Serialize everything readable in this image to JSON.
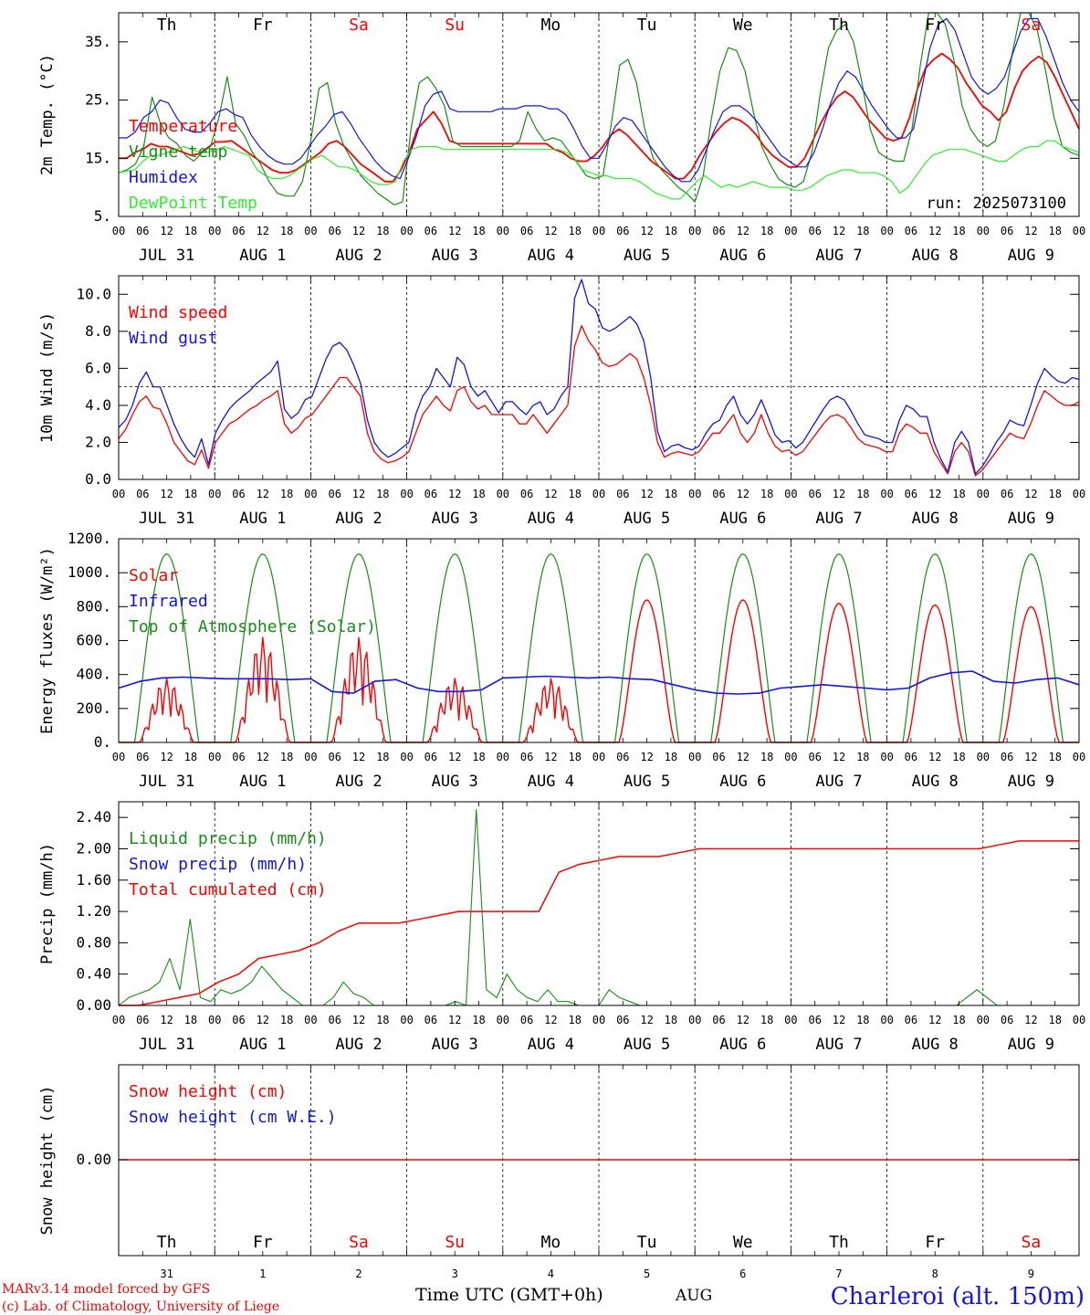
{
  "meta": {
    "run": "run: 2025073100",
    "footer_left_1": "MARv3.14 model forced by GFS",
    "footer_left_2": "(c) Lab. of Climatology, University of Liege",
    "footer_center": "Time UTC (GMT+0h)",
    "footer_month": "AUG",
    "station": "Charleroi (alt. 150m)",
    "hour_ticks": [
      "00",
      "06",
      "12",
      "18"
    ],
    "days": [
      "Th",
      "Fr",
      "Sa",
      "Su",
      "Mo",
      "Tu",
      "We",
      "Th",
      "Fr",
      "Sa"
    ],
    "weekend_color_idx": [
      2,
      3,
      9
    ],
    "dates": [
      "JUL 31",
      "AUG  1",
      "AUG  2",
      "AUG  3",
      "AUG  4",
      "AUG  5",
      "AUG  6",
      "AUG  7",
      "AUG  8",
      "AUG  9"
    ],
    "date_numbers": [
      "31",
      "1",
      "2",
      "3",
      "4",
      "5",
      "6",
      "7",
      "8",
      "9"
    ],
    "colors": {
      "red": "#ff0000",
      "green": "#1a8c1a",
      "blue": "#1414e6",
      "lightgreen": "#33ee33",
      "weekend": "#ff1a1a"
    }
  },
  "chart_data": [
    {
      "type": "line",
      "ylabel": "2m Temp. (°C)",
      "ylim": [
        5,
        40
      ],
      "yticks": [
        "5.",
        "15.",
        "25.",
        "35."
      ],
      "x": "hour of period (0-240, 3-hourly)",
      "series": [
        {
          "name": "Temperature",
          "color": "red",
          "values": [
            15,
            15,
            16,
            16.5,
            17.5,
            17,
            17,
            16.5,
            16,
            15.5,
            15.8,
            16.8,
            17.8,
            17.8,
            18,
            17,
            16,
            15,
            14,
            13,
            12.5,
            12.5,
            13,
            14,
            15,
            16,
            17.5,
            18,
            17,
            15.5,
            14,
            13,
            12,
            11,
            11,
            13,
            16,
            20,
            21.5,
            23,
            21,
            18,
            17.5,
            17.5,
            17.5,
            17.5,
            17.5,
            17.5,
            17.5,
            17.5,
            17.5,
            17.5,
            17.5,
            17.5,
            16.5,
            16,
            15,
            14.5,
            14.5,
            15.5,
            17,
            19,
            20,
            19,
            17.5,
            16,
            14.5,
            13.5,
            12.5,
            11.5,
            11.5,
            13,
            15.5,
            17.5,
            19.5,
            21,
            22,
            21.5,
            20.5,
            19,
            17,
            15.5,
            14.5,
            13.5,
            13.5,
            15,
            18,
            21,
            23.5,
            25.5,
            26.5,
            25.5,
            23.5,
            21.5,
            20,
            18.5,
            18,
            18.5,
            22,
            27,
            30.5,
            32,
            33,
            32,
            30.5,
            28,
            26,
            24,
            23,
            21.5,
            23,
            27,
            30,
            31.5,
            32.5,
            31.5,
            29,
            26,
            23,
            20
          ]
        },
        {
          "name": "Vigne temp",
          "color": "green",
          "values": [
            12.5,
            13,
            14,
            17,
            25.5,
            21,
            18.5,
            17.5,
            15.5,
            14.5,
            16,
            17,
            22,
            29,
            21,
            19,
            16,
            14,
            11,
            9,
            8.5,
            8.5,
            11,
            18,
            27,
            28,
            21,
            17,
            14.5,
            12,
            10.5,
            9,
            8,
            7,
            7.5,
            20,
            28,
            29,
            27,
            24,
            18,
            17,
            17,
            17,
            17,
            17,
            17,
            17,
            18,
            23,
            20,
            18,
            18.5,
            18,
            16,
            14,
            12,
            11.5,
            12,
            21,
            31,
            32,
            28,
            20,
            15,
            13,
            11.5,
            10,
            9,
            7.5,
            12,
            22,
            30,
            34,
            33.5,
            30,
            23,
            17,
            14,
            11.5,
            10.5,
            10,
            11,
            16,
            26,
            34,
            37,
            38,
            35,
            28,
            20,
            16,
            15,
            14.5,
            14.5,
            20,
            31,
            40,
            41,
            38,
            32,
            24,
            20,
            18,
            17,
            18,
            24,
            33,
            40,
            42,
            37,
            30,
            22,
            17,
            16,
            15.5
          ]
        },
        {
          "name": "Humidex",
          "color": "blue",
          "values": [
            18.5,
            18.5,
            19.5,
            22,
            23,
            25,
            24.5,
            22,
            20,
            19.5,
            19.5,
            21,
            23,
            23.5,
            22.5,
            22,
            19,
            17,
            15.5,
            14.5,
            14,
            14,
            15,
            17,
            19,
            20.5,
            22.5,
            23,
            21,
            18.5,
            16.5,
            14.5,
            13,
            12,
            11.5,
            15,
            19,
            24,
            26,
            26.5,
            23.5,
            23,
            23,
            23,
            23,
            23,
            23.5,
            23.5,
            23.5,
            24,
            24,
            24,
            23.5,
            23.5,
            22.5,
            20,
            17,
            15,
            15,
            17.5,
            20.5,
            22,
            21.5,
            19.5,
            17.5,
            15.5,
            13.5,
            12,
            11,
            11,
            13,
            16.5,
            20,
            23,
            24,
            24,
            23,
            21.5,
            19.5,
            17.5,
            15.5,
            14.5,
            13.5,
            13.5,
            16,
            20,
            24.5,
            28,
            30,
            29,
            26.5,
            24,
            22,
            20,
            18.5,
            18.5,
            20,
            27,
            34,
            38,
            39,
            37,
            33,
            29,
            27,
            26,
            27,
            29,
            33,
            37,
            39,
            39,
            36,
            32,
            28,
            25,
            23
          ]
        },
        {
          "name": "DewPoint Temp",
          "color": "lightgreen",
          "values": [
            12.5,
            12.8,
            13,
            14.5,
            15.5,
            15.5,
            16,
            16.5,
            17,
            16.5,
            16,
            16,
            16.5,
            17,
            16.5,
            16,
            15.5,
            13,
            12,
            11.5,
            11.5,
            12,
            13,
            14,
            15,
            15.5,
            14.5,
            13.5,
            13.5,
            13,
            12,
            11,
            10.5,
            10.5,
            11,
            14.5,
            16.5,
            17,
            17,
            17,
            16.5,
            16.5,
            16.5,
            16.5,
            16.5,
            16.5,
            16.5,
            16.5,
            16.5,
            16.5,
            16.5,
            16.5,
            16.5,
            16.5,
            16.5,
            16,
            15,
            13,
            12.5,
            12,
            12,
            11.5,
            11.5,
            11.5,
            11,
            10,
            9,
            8.5,
            8,
            8,
            9.5,
            11,
            12,
            11,
            10,
            10.5,
            10,
            10.5,
            11,
            10.5,
            10,
            10,
            10,
            9.5,
            9.5,
            10,
            11,
            12,
            12.5,
            13,
            13,
            12.5,
            12.5,
            12.5,
            12,
            11,
            9,
            10,
            12,
            14,
            15.5,
            16,
            16.5,
            16.5,
            16.5,
            16,
            15.5,
            15,
            14.5,
            14.5,
            15.5,
            16.5,
            17,
            17,
            18,
            18,
            17,
            16.5,
            16
          ]
        }
      ]
    },
    {
      "type": "line",
      "ylabel": "10m Wind (m/s)",
      "ylim": [
        0,
        11
      ],
      "yticks": [
        "0.0",
        "2.0",
        "4.0",
        "6.0",
        "8.0",
        "10.0"
      ],
      "reference_line": 5,
      "series": [
        {
          "name": "Wind speed",
          "color": "red",
          "values": [
            2.2,
            2.7,
            3.5,
            4.2,
            4.5,
            3.9,
            3.8,
            3,
            2,
            1.5,
            1,
            0.8,
            1.6,
            0.6,
            2,
            2.5,
            3,
            3.2,
            3.5,
            3.8,
            4,
            4.3,
            4.5,
            4.8,
            3,
            2.5,
            2.8,
            3.3,
            3.5,
            4,
            4.5,
            5,
            5.5,
            5.5,
            5,
            4.5,
            2.5,
            1.5,
            1.1,
            0.9,
            1,
            1.2,
            1.5,
            2.5,
            3.5,
            4,
            4.5,
            4,
            3.7,
            4.8,
            5,
            4.2,
            3.8,
            4,
            3.5,
            3.5,
            3.5,
            3.5,
            3,
            3,
            3.5,
            3,
            2.5,
            3,
            3.5,
            4,
            7.2,
            8.3,
            7.5,
            7,
            6.3,
            6.1,
            6.2,
            6.5,
            6.8,
            6.5,
            5.5,
            4,
            2,
            1.2,
            1.4,
            1.5,
            1.4,
            1.3,
            1.5,
            2,
            2.5,
            2.5,
            3,
            3.5,
            2.5,
            2,
            2.5,
            3.5,
            2.5,
            1.8,
            1.5,
            1.6,
            1.3,
            1.5,
            2,
            2.5,
            3,
            3.4,
            3.5,
            3.3,
            2.8,
            2.2,
            1.9,
            1.8,
            1.7,
            1.5,
            1.5,
            2.5,
            3,
            2.8,
            2.5,
            2.5,
            1.5,
            0.9,
            0.3,
            1.5,
            2,
            1.5,
            0.2,
            0.5,
            1,
            1.5,
            2,
            2.5,
            2.3,
            2.2,
            3,
            4,
            4.8,
            4.5,
            4.2,
            4,
            4,
            4.2
          ]
        },
        {
          "name": "Wind gust",
          "color": "blue",
          "values": [
            2.8,
            3.2,
            4,
            5.2,
            5.8,
            5,
            5,
            4,
            3,
            2.2,
            1.6,
            1.2,
            2.2,
            0.8,
            2.5,
            3.2,
            3.8,
            4.2,
            4.5,
            4.8,
            5.2,
            5.5,
            5.8,
            6.4,
            3.8,
            3.3,
            3.6,
            4.3,
            4.5,
            5.5,
            6.5,
            7.2,
            7.4,
            7,
            6.2,
            5.2,
            3.2,
            2,
            1.5,
            1.2,
            1.4,
            1.7,
            2,
            3.5,
            4.5,
            5,
            6,
            5.5,
            5,
            6.6,
            6.2,
            5,
            4.5,
            4.8,
            4.2,
            3.6,
            4.2,
            4.2,
            3.8,
            3.5,
            4,
            4.2,
            3.5,
            3.8,
            4.5,
            5,
            9.8,
            10.8,
            9.5,
            9.2,
            8.2,
            8,
            8.2,
            8.5,
            8.8,
            8.4,
            7.5,
            5.5,
            2.6,
            1.5,
            1.8,
            1.9,
            1.7,
            1.6,
            1.8,
            2.5,
            3,
            3.2,
            4,
            4.5,
            3.5,
            3,
            3.5,
            4.3,
            3.4,
            2.4,
            2,
            2.1,
            1.7,
            2,
            2.6,
            3.2,
            3.8,
            4.3,
            4.5,
            4.3,
            3.7,
            3,
            2.4,
            2.3,
            2.2,
            2,
            2,
            3.2,
            4,
            3.8,
            3.4,
            3.4,
            2,
            1.1,
            0.4,
            2,
            2.6,
            2,
            0.3,
            0.7,
            1.3,
            2,
            2.5,
            3.2,
            3,
            2.9,
            4,
            5.2,
            6,
            5.6,
            5.3,
            5.2,
            5.5,
            5.4
          ]
        }
      ]
    },
    {
      "type": "line",
      "ylabel": "Energy fluxes (W/m²)",
      "ylim": [
        0,
        1200
      ],
      "yticks": [
        "0.",
        "200.",
        "400.",
        "600.",
        "800.",
        "1000.",
        "1200."
      ],
      "series": [
        {
          "name": "Solar",
          "color": "red",
          "peaks": [
            380,
            620,
            620,
            380,
            380,
            840,
            840,
            820,
            810,
            800
          ]
        },
        {
          "name": "Infrared",
          "color": "blue",
          "values": [
            320,
            360,
            380,
            385,
            380,
            375,
            375,
            375,
            370,
            375,
            300,
            290,
            360,
            370,
            320,
            300,
            300,
            310,
            380,
            385,
            390,
            385,
            380,
            385,
            375,
            370,
            340,
            310,
            290,
            285,
            290,
            320,
            330,
            340,
            330,
            320,
            310,
            320,
            380,
            410,
            420,
            360,
            350,
            370,
            380,
            340
          ]
        },
        {
          "name": "Top of Atmosphere (Solar)",
          "color": "green",
          "peak": 1110
        }
      ]
    },
    {
      "type": "line",
      "ylabel": "Precip (mm/h)",
      "ylim": [
        0,
        2.6
      ],
      "yticks": [
        "0.00",
        "0.40",
        "0.80",
        "1.20",
        "1.60",
        "2.00",
        "2.40"
      ],
      "series": [
        {
          "name": "Liquid precip (mm/h)",
          "color": "green",
          "values": [
            0,
            0.1,
            0.15,
            0.2,
            0.3,
            0.6,
            0.2,
            1.1,
            0.1,
            0.05,
            0.2,
            0.15,
            0.2,
            0.3,
            0.5,
            0.35,
            0.2,
            0.1,
            0,
            0,
            0,
            0.1,
            0.3,
            0.15,
            0.1,
            0,
            0,
            0,
            0,
            0,
            0,
            0,
            0,
            0.05,
            0,
            2.5,
            0.2,
            0.1,
            0.4,
            0.2,
            0.1,
            0.05,
            0.2,
            0.05,
            0.05,
            0,
            0,
            0,
            0.2,
            0.1,
            0.05,
            0,
            0,
            0,
            0,
            0,
            0,
            0,
            0,
            0,
            0,
            0,
            0,
            0,
            0,
            0,
            0,
            0,
            0,
            0,
            0,
            0,
            0,
            0,
            0,
            0,
            0,
            0,
            0,
            0,
            0,
            0,
            0,
            0.1,
            0.2,
            0.1,
            0,
            0,
            0,
            0,
            0,
            0,
            0,
            0,
            0
          ]
        },
        {
          "name": "Snow precip (mm/h)",
          "color": "blue",
          "values": []
        },
        {
          "name": "Total cumulated (cm)",
          "color": "red",
          "values": [
            0,
            0,
            0.05,
            0.1,
            0.15,
            0.3,
            0.4,
            0.6,
            0.65,
            0.7,
            0.8,
            0.95,
            1.05,
            1.05,
            1.05,
            1.1,
            1.15,
            1.2,
            1.2,
            1.2,
            1.2,
            1.2,
            1.7,
            1.8,
            1.85,
            1.9,
            1.9,
            1.9,
            1.95,
            2,
            2,
            2,
            2,
            2,
            2,
            2,
            2,
            2,
            2,
            2,
            2,
            2,
            2,
            2,
            2.05,
            2.1,
            2.1,
            2.1,
            2.1
          ]
        }
      ]
    },
    {
      "type": "line",
      "ylabel": "Snow height (cm)",
      "yticks": [
        "0.00"
      ],
      "series": [
        {
          "name": "Snow height (cm)",
          "color": "red",
          "values": [
            0
          ]
        },
        {
          "name": "Snow height (cm W.E.)",
          "color": "blue",
          "values": [
            0
          ]
        }
      ]
    }
  ]
}
